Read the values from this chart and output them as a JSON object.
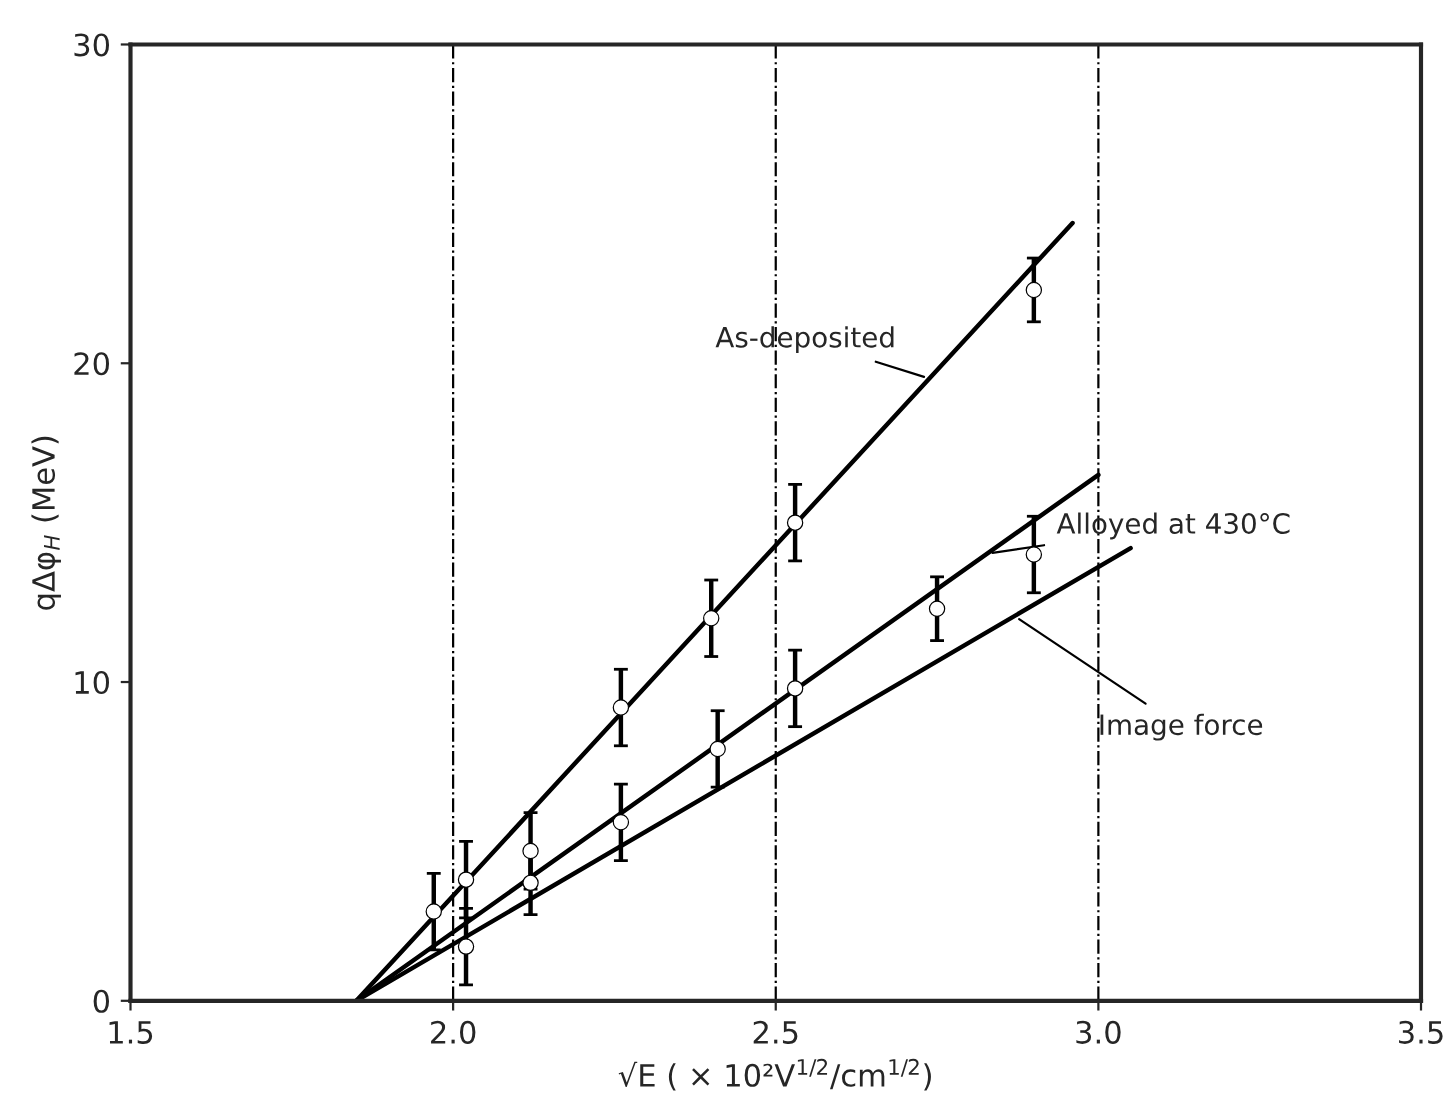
{
  "chart_data": {
    "type": "line",
    "xlabel": "√E ( × 10²V$^{1/2}$/cm$^{1/2}$)",
    "ylabel": "qΔφ$_{H}$ (MeV)",
    "xlim": [
      1.5,
      3.5
    ],
    "ylim": [
      0,
      30
    ],
    "xticks": [
      {
        "value": 1.5,
        "label": "1.5"
      },
      {
        "value": 2.0,
        "label": "2.0"
      },
      {
        "value": 2.5,
        "label": "2.5"
      },
      {
        "value": 3.0,
        "label": "3.0"
      },
      {
        "value": 3.5,
        "label": "3.5"
      }
    ],
    "yticks": [
      0,
      10,
      20,
      30
    ],
    "grid": "x",
    "series": [
      {
        "name": "As-deposited",
        "color": "#000000",
        "x": [
          1.85,
          2.96
        ],
        "values": [
          0,
          24.4
        ]
      },
      {
        "name": "Alloyed at 430°C",
        "color": "#000000",
        "x": [
          1.85,
          3.0
        ],
        "values": [
          0,
          16.5
        ]
      },
      {
        "name": "Image force",
        "color": "#000000",
        "x": [
          1.85,
          3.05
        ],
        "values": [
          0,
          14.2
        ]
      },
      {
        "type": "scatter",
        "color": "#000000",
        "marker": "circle",
        "x": [
          1.97,
          2.02,
          2.12,
          2.26,
          2.4,
          2.53,
          2.9
        ],
        "values": [
          2.8,
          3.8,
          4.7,
          9.2,
          12.0,
          15.0,
          22.3
        ],
        "errors": [
          1.2,
          1.2,
          1.2,
          1.2,
          1.2,
          1.2,
          1.0
        ]
      },
      {
        "type": "scatter",
        "color": "#000000",
        "marker": "circle",
        "x": [
          2.02,
          2.12,
          2.26,
          2.41,
          2.53,
          2.75,
          2.9
        ],
        "values": [
          1.7,
          3.7,
          5.6,
          7.9,
          9.8,
          12.3,
          14.0
        ],
        "errors": [
          1.2,
          1.0,
          1.2,
          1.2,
          1.2,
          1.0,
          1.2
        ]
      }
    ]
  }
}
